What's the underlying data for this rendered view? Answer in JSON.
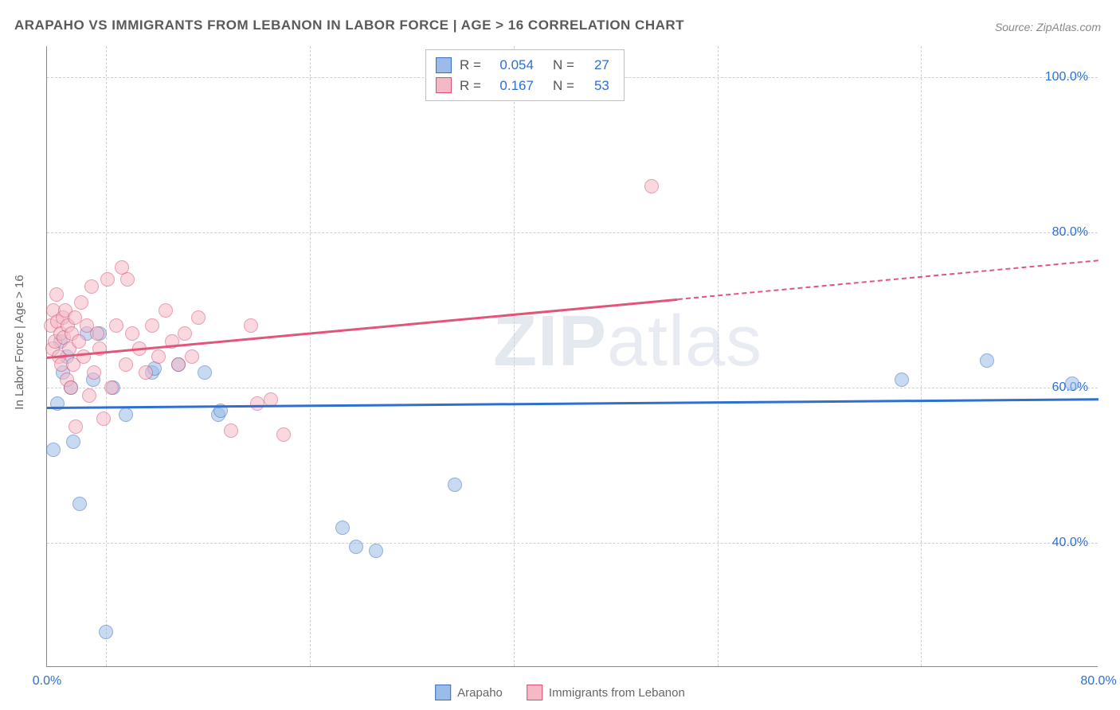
{
  "title": "ARAPAHO VS IMMIGRANTS FROM LEBANON IN LABOR FORCE | AGE > 16 CORRELATION CHART",
  "source": "Source: ZipAtlas.com",
  "y_axis_title": "In Labor Force | Age > 16",
  "watermark_bold": "ZIP",
  "watermark_thin": "atlas",
  "chart": {
    "type": "scatter",
    "background_color": "#ffffff",
    "grid_color": "#cfcfcf",
    "xlim": [
      0,
      80
    ],
    "ylim": [
      24,
      104
    ],
    "x_ticks": [
      0.0,
      80.0
    ],
    "x_tick_labels": [
      "0.0%",
      "80.0%"
    ],
    "y_ticks": [
      40.0,
      60.0,
      80.0,
      100.0
    ],
    "y_tick_labels": [
      "40.0%",
      "60.0%",
      "80.0%",
      "100.0%"
    ],
    "v_gridlines_at_x": [
      4.5,
      20,
      35.5,
      51,
      66.5
    ],
    "marker_radius": 9,
    "marker_opacity": 0.55,
    "series": [
      {
        "name": "Arapaho",
        "fill_color": "#9bbce8",
        "stroke_color": "#3a6fb9",
        "trend_color": "#2f6fd0",
        "r_value": "0.054",
        "n_value": "27",
        "trend": {
          "x1": 0,
          "y1": 57.5,
          "x2": 80,
          "y2": 58.6
        },
        "points": [
          [
            0.5,
            52
          ],
          [
            0.8,
            58
          ],
          [
            1.0,
            66
          ],
          [
            1.2,
            62
          ],
          [
            1.5,
            64
          ],
          [
            1.8,
            60
          ],
          [
            2.5,
            45
          ],
          [
            2.0,
            53
          ],
          [
            3.0,
            67
          ],
          [
            3.5,
            61
          ],
          [
            4.0,
            67
          ],
          [
            5.0,
            60
          ],
          [
            6.0,
            56.5
          ],
          [
            4.5,
            28.5
          ],
          [
            8.0,
            62
          ],
          [
            8.2,
            62.5
          ],
          [
            10.0,
            63
          ],
          [
            12.0,
            62
          ],
          [
            13.0,
            56.5
          ],
          [
            13.2,
            57
          ],
          [
            22.5,
            42
          ],
          [
            23.5,
            39.5
          ],
          [
            25.0,
            39
          ],
          [
            31.0,
            47.5
          ],
          [
            65.0,
            61
          ],
          [
            71.5,
            63.5
          ],
          [
            78.0,
            60.5
          ]
        ]
      },
      {
        "name": "Immigrants from Lebanon",
        "fill_color": "#f5b9c6",
        "stroke_color": "#d94f73",
        "trend_color": "#e2557a",
        "r_value": "0.167",
        "n_value": "53",
        "trend": {
          "x1": 0,
          "y1": 64.0,
          "x2": 80,
          "y2": 76.5
        },
        "trend_solid_until_x": 48,
        "points": [
          [
            0.3,
            68
          ],
          [
            0.4,
            65
          ],
          [
            0.5,
            70
          ],
          [
            0.6,
            66
          ],
          [
            0.7,
            72
          ],
          [
            0.8,
            68.5
          ],
          [
            0.9,
            64
          ],
          [
            1.0,
            67
          ],
          [
            1.1,
            63
          ],
          [
            1.2,
            69
          ],
          [
            1.3,
            66.5
          ],
          [
            1.4,
            70
          ],
          [
            1.5,
            61
          ],
          [
            1.6,
            68
          ],
          [
            1.7,
            65
          ],
          [
            1.8,
            60
          ],
          [
            1.9,
            67
          ],
          [
            2.0,
            63
          ],
          [
            2.1,
            69
          ],
          [
            2.2,
            55
          ],
          [
            2.4,
            66
          ],
          [
            2.6,
            71
          ],
          [
            2.8,
            64
          ],
          [
            3.0,
            68
          ],
          [
            3.2,
            59
          ],
          [
            3.4,
            73
          ],
          [
            3.6,
            62
          ],
          [
            3.8,
            67
          ],
          [
            4.0,
            65
          ],
          [
            4.3,
            56
          ],
          [
            4.6,
            74
          ],
          [
            4.9,
            60
          ],
          [
            5.3,
            68
          ],
          [
            5.7,
            75.5
          ],
          [
            6.0,
            63
          ],
          [
            6.1,
            74
          ],
          [
            6.5,
            67
          ],
          [
            7.0,
            65
          ],
          [
            7.5,
            62
          ],
          [
            8.0,
            68
          ],
          [
            8.5,
            64
          ],
          [
            9.0,
            70
          ],
          [
            9.5,
            66
          ],
          [
            10.0,
            63
          ],
          [
            10.5,
            67
          ],
          [
            11.0,
            64
          ],
          [
            11.5,
            69
          ],
          [
            14.0,
            54.5
          ],
          [
            15.5,
            68
          ],
          [
            16.0,
            58
          ],
          [
            17.0,
            58.5
          ],
          [
            18.0,
            54
          ],
          [
            46.0,
            86
          ]
        ]
      }
    ]
  },
  "legend": {
    "items": [
      {
        "label": "Arapaho",
        "fill": "#9bbce8",
        "stroke": "#3a6fb9"
      },
      {
        "label": "Immigrants from Lebanon",
        "fill": "#f5b9c6",
        "stroke": "#d94f73"
      }
    ]
  },
  "stats_box": {
    "r_label": "R =",
    "n_label": "N ="
  }
}
